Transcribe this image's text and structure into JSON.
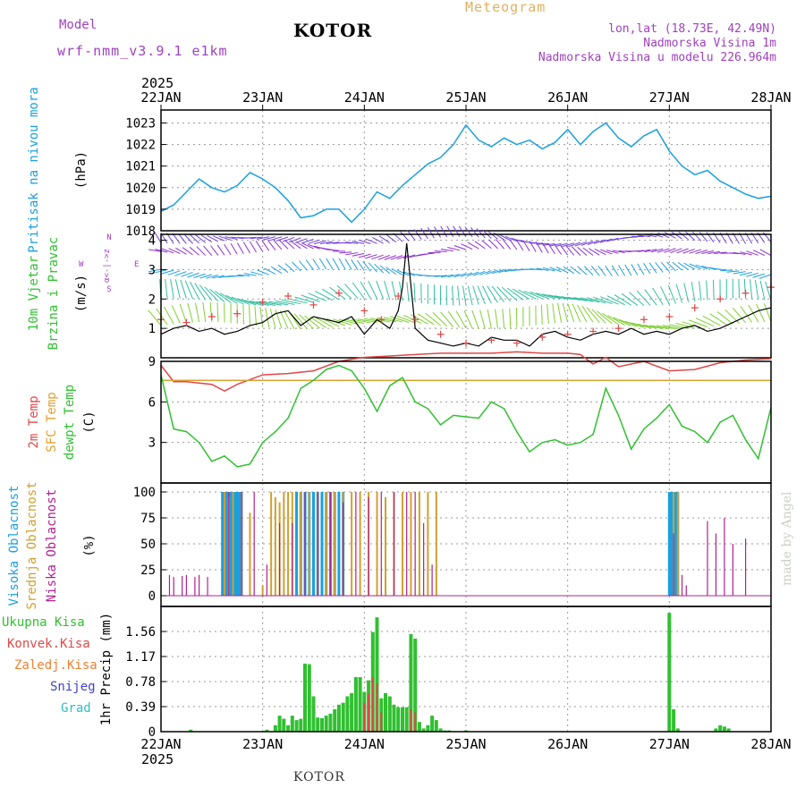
{
  "header": {
    "model_label": "Model",
    "model_name": "wrf-nmm_v3.9.1 e1km",
    "station": "KOTOR",
    "product": "Meteogram",
    "lonlat": "lon,lat (18.73E, 42.49N)",
    "altitude": "Nadmorska Visina 1m",
    "model_altitude": "Nadmorska Visina u modelu 226.964m"
  },
  "footer": {
    "station": "KOTOR",
    "watermark": "made by Angel"
  },
  "colors": {
    "pressure": "#1aa0e0",
    "temp2m": "#e04848",
    "sfc_temp": "#e0a030",
    "dewpt": "#30c030",
    "high_cloud": "#1aa0e0",
    "mid_cloud": "#d0a030",
    "low_cloud": "#b02090",
    "total_precip": "#30c030",
    "conv_precip": "#e04848",
    "freezing_rain": "#f08030",
    "snow": "#4040d0",
    "hail": "#30c0c0",
    "wind_speed": "#000000",
    "gust": "#e04848"
  },
  "chart_data": [
    {
      "type": "line",
      "panel": "pressure",
      "year_label": "2025",
      "x_ticks": [
        "22JAN",
        "23JAN",
        "24JAN",
        "25JAN",
        "26JAN",
        "27JAN",
        "28JAN"
      ],
      "ylabel": "Pritisak na nivou mora",
      "yunit": "(hPa)",
      "ylim": [
        1018,
        1023.6
      ],
      "yticks": [
        1018,
        1019,
        1020,
        1021,
        1022,
        1023
      ],
      "grid": true,
      "series": [
        {
          "name": "Pritisak na nivou mora",
          "x_hours": [
            0,
            3,
            6,
            9,
            12,
            15,
            18,
            21,
            24,
            27,
            30,
            33,
            36,
            39,
            42,
            45,
            48,
            51,
            54,
            57,
            60,
            63,
            66,
            69,
            72,
            75,
            78,
            81,
            84,
            87,
            90,
            93,
            96,
            99,
            102,
            105,
            108,
            111,
            114,
            117,
            120,
            123,
            126,
            129,
            132,
            135,
            138,
            141,
            144
          ],
          "values": [
            1018.9,
            1019.2,
            1019.8,
            1020.4,
            1020.0,
            1019.8,
            1020.1,
            1020.7,
            1020.4,
            1020.0,
            1019.4,
            1018.6,
            1018.7,
            1019.0,
            1019.0,
            1018.4,
            1019.0,
            1019.8,
            1019.5,
            1020.1,
            1020.6,
            1021.1,
            1021.4,
            1022.0,
            1022.9,
            1022.2,
            1021.9,
            1022.3,
            1022.0,
            1022.2,
            1021.8,
            1022.1,
            1022.7,
            1022.0,
            1022.6,
            1023.0,
            1022.3,
            1021.9,
            1022.4,
            1022.7,
            1021.7,
            1021.0,
            1020.6,
            1020.8,
            1020.3,
            1020.0,
            1019.7,
            1019.5,
            1019.6
          ]
        }
      ]
    },
    {
      "type": "line",
      "panel": "wind",
      "ylabel": "10m Vjetar",
      "ylabel2": "Brzina i Pravac",
      "yunit": "(m/s)",
      "ylim": [
        0,
        4.2
      ],
      "yticks": [
        1,
        2,
        3,
        4
      ],
      "direction_legend": {
        "n": "N",
        "s": "S",
        "e": "E",
        "w": "W",
        "arrows": "α<-|->z"
      },
      "series": [
        {
          "name": "speed",
          "x_hours": [
            0,
            3,
            6,
            9,
            12,
            15,
            18,
            21,
            24,
            27,
            30,
            33,
            36,
            39,
            42,
            45,
            48,
            51,
            54,
            56,
            57,
            58,
            60,
            63,
            66,
            69,
            72,
            75,
            78,
            81,
            84,
            87,
            90,
            93,
            96,
            99,
            102,
            105,
            108,
            111,
            114,
            117,
            120,
            123,
            126,
            129,
            132,
            135,
            138,
            141,
            144
          ],
          "values": [
            0.8,
            1.0,
            1.1,
            0.9,
            1.0,
            0.8,
            0.9,
            1.1,
            1.2,
            1.5,
            1.6,
            1.1,
            1.4,
            1.3,
            1.2,
            1.4,
            0.8,
            1.3,
            1.0,
            1.6,
            2.4,
            3.9,
            1.0,
            0.6,
            0.5,
            0.4,
            0.5,
            0.4,
            0.7,
            0.6,
            0.6,
            0.4,
            0.8,
            0.9,
            0.7,
            0.6,
            0.8,
            0.9,
            0.8,
            1.0,
            0.8,
            0.9,
            0.8,
            1.0,
            1.1,
            0.9,
            1.0,
            1.2,
            1.4,
            1.6,
            1.7
          ]
        },
        {
          "name": "gust",
          "x_hours": [
            0,
            6,
            12,
            18,
            24,
            30,
            36,
            42,
            48,
            52,
            56,
            60,
            66,
            72,
            78,
            84,
            90,
            96,
            102,
            108,
            114,
            120,
            126,
            132,
            138,
            144
          ],
          "values": [
            1.3,
            1.2,
            1.4,
            1.5,
            1.9,
            2.1,
            1.8,
            2.2,
            1.6,
            1.3,
            2.1,
            1.3,
            0.8,
            0.5,
            0.6,
            0.5,
            0.7,
            0.8,
            0.9,
            1.0,
            1.3,
            1.4,
            1.7,
            2.0,
            2.2,
            2.4
          ]
        }
      ]
    },
    {
      "type": "line",
      "panel": "temperature",
      "ylabel": "2m Temp",
      "ylabel2": "SFC Temp",
      "ylabel3": "dewpt Temp",
      "yunit": "(C)",
      "ylim": [
        0,
        9
      ],
      "yticks": [
        3,
        6,
        9
      ],
      "series": [
        {
          "name": "2m Temp",
          "x_hours": [
            0,
            3,
            6,
            9,
            12,
            15,
            18,
            24,
            30,
            36,
            42,
            48,
            54,
            60,
            66,
            72,
            78,
            84,
            90,
            96,
            99,
            102,
            105,
            108,
            114,
            120,
            126,
            132,
            138,
            144
          ],
          "values": [
            8.7,
            7.5,
            7.5,
            7.4,
            7.3,
            6.8,
            7.3,
            8.0,
            8.1,
            8.3,
            9.0,
            9.3,
            9.4,
            9.5,
            9.6,
            9.6,
            9.6,
            9.7,
            9.6,
            9.6,
            9.5,
            8.8,
            9.3,
            8.6,
            9.0,
            8.3,
            8.4,
            8.9,
            9.1,
            9.2
          ]
        },
        {
          "name": "SFC Temp",
          "x_hours": [
            0,
            144
          ],
          "values": [
            7.6,
            7.6
          ]
        },
        {
          "name": "dewpt Temp",
          "x_hours": [
            0,
            3,
            6,
            9,
            12,
            15,
            18,
            21,
            24,
            27,
            30,
            33,
            36,
            39,
            42,
            45,
            48,
            51,
            54,
            57,
            60,
            63,
            66,
            69,
            72,
            75,
            78,
            81,
            84,
            87,
            90,
            93,
            96,
            99,
            102,
            105,
            108,
            111,
            114,
            117,
            120,
            123,
            126,
            129,
            132,
            135,
            138,
            141,
            144
          ],
          "values": [
            8.0,
            4.0,
            3.8,
            3.0,
            1.6,
            2.0,
            1.2,
            1.4,
            3.0,
            3.8,
            4.8,
            7.0,
            7.6,
            8.4,
            8.7,
            8.3,
            7.0,
            5.3,
            7.2,
            7.8,
            6.0,
            5.5,
            4.3,
            5.0,
            4.9,
            4.8,
            6.0,
            5.5,
            3.8,
            2.3,
            3.0,
            3.2,
            2.8,
            3.0,
            3.6,
            7.0,
            5.0,
            2.5,
            4.0,
            4.8,
            5.8,
            4.2,
            3.8,
            3.0,
            4.5,
            5.0,
            3.2,
            1.8,
            5.6
          ]
        }
      ]
    },
    {
      "type": "bar",
      "panel": "cloud",
      "ylabel": "Visoka Oblacnost",
      "ylabel2": "Srednja Oblacnost",
      "ylabel3": "Niska Oblacnost",
      "yunit": "(%)",
      "ylim": [
        0,
        100
      ],
      "yticks": [
        0,
        25,
        50,
        75,
        100
      ],
      "series": [
        {
          "name": "Visoka Oblacnost",
          "x_hours": [
            14.5,
            15,
            15.5,
            16,
            16.5,
            17,
            17.5,
            18,
            18.5,
            19,
            32,
            33,
            34,
            35,
            36,
            37,
            38,
            39,
            40,
            41,
            42,
            43,
            120,
            120.5,
            121,
            121.5,
            122
          ],
          "values": [
            100,
            100,
            100,
            100,
            100,
            100,
            100,
            100,
            100,
            100,
            100,
            100,
            100,
            100,
            100,
            100,
            100,
            100,
            100,
            100,
            100,
            100,
            100,
            100,
            100,
            100,
            100
          ]
        },
        {
          "name": "Srednja Oblacnost",
          "x_hours": [
            15,
            16,
            17,
            19,
            21,
            24,
            26,
            27,
            28,
            29,
            30,
            31,
            33,
            35,
            37,
            39,
            41,
            43,
            45,
            47,
            49,
            51,
            53,
            55,
            57,
            59,
            61,
            63,
            65,
            121,
            122
          ],
          "values": [
            100,
            95,
            100,
            100,
            80,
            10,
            100,
            95,
            90,
            100,
            100,
            100,
            100,
            100,
            100,
            100,
            100,
            100,
            100,
            100,
            100,
            100,
            95,
            100,
            100,
            100,
            100,
            100,
            100,
            100,
            100
          ]
        },
        {
          "name": "Niska Oblacnost",
          "x_hours": [
            2,
            3,
            5,
            6,
            8,
            9,
            11,
            16,
            19,
            22,
            25,
            28,
            31,
            34,
            37,
            40,
            43,
            46,
            49,
            52,
            55,
            58,
            60,
            62,
            64,
            121,
            123,
            124,
            129,
            131,
            133,
            135,
            138
          ],
          "values": [
            20,
            18,
            19,
            20,
            18,
            20,
            18,
            100,
            100,
            100,
            30,
            70,
            70,
            100,
            100,
            100,
            90,
            100,
            95,
            100,
            100,
            100,
            100,
            70,
            30,
            60,
            20,
            10,
            72,
            60,
            75,
            50,
            55
          ]
        }
      ]
    },
    {
      "type": "bar",
      "panel": "precip",
      "ylabel": "1hr Precip",
      "yunit": "(mm)",
      "legend": [
        "Ukupna Kisa",
        "Konvek.Kisa",
        "Zaledj.Kisa",
        "Snijeg",
        "Grad"
      ],
      "ylim": [
        0,
        1.95
      ],
      "yticks": [
        0,
        0.39,
        0.78,
        1.17,
        1.56
      ],
      "series": [
        {
          "name": "Ukupna Kisa",
          "x_hours": [
            7,
            25,
            27,
            28,
            29,
            30,
            31,
            32,
            33,
            34,
            35,
            36,
            37,
            38,
            39,
            40,
            41,
            42,
            43,
            44,
            45,
            46,
            47,
            48,
            49,
            50,
            51,
            52,
            53,
            54,
            55,
            56,
            57,
            58,
            59,
            60,
            61,
            62,
            63,
            64,
            65,
            66,
            67,
            68,
            72,
            120,
            121,
            122,
            131,
            132,
            133,
            134
          ],
          "values": [
            0.03,
            0.03,
            0.1,
            0.25,
            0.2,
            0.1,
            0.25,
            0.18,
            0.2,
            1.06,
            1.05,
            0.55,
            0.22,
            0.21,
            0.25,
            0.28,
            0.35,
            0.42,
            0.45,
            0.55,
            0.6,
            0.85,
            0.85,
            0.62,
            0.8,
            1.55,
            1.78,
            0.52,
            0.6,
            0.55,
            0.42,
            0.38,
            0.38,
            0.38,
            1.52,
            1.45,
            0.15,
            0.05,
            0.1,
            0.25,
            0.18,
            0.05,
            0.02,
            0.02,
            0.02,
            1.85,
            0.35,
            0.05,
            0.05,
            0.1,
            0.08,
            0.05
          ]
        },
        {
          "name": "Konvek.Kisa",
          "x_hours": [
            48,
            49,
            50,
            51,
            52,
            59,
            60
          ],
          "values": [
            0.45,
            0.6,
            0.85,
            0.75,
            0.3,
            0.35,
            0.3
          ]
        }
      ]
    }
  ]
}
